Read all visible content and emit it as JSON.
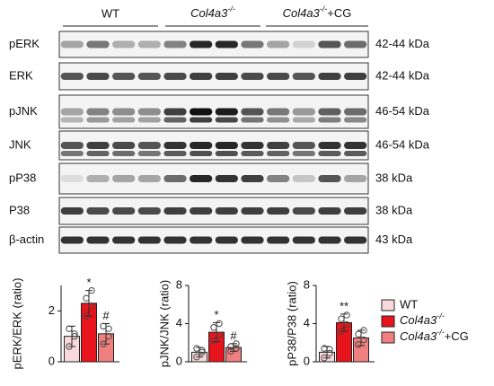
{
  "blot": {
    "groups": [
      "WT",
      "Col4a3-/-",
      "Col4a3-/-+CG"
    ],
    "rows": [
      {
        "label": "pERK",
        "size": "42-44 kDa"
      },
      {
        "label": "ERK",
        "size": "42-44 kDa"
      },
      {
        "label": "pJNK",
        "size": "46-54 kDa"
      },
      {
        "label": "JNK",
        "size": "46-54 kDa"
      },
      {
        "label": "pP38",
        "size": "38 kDa"
      },
      {
        "label": "P38",
        "size": "38 kDa"
      },
      {
        "label": "β-actin",
        "size": "43 kDa"
      }
    ]
  },
  "chart_data": [
    {
      "type": "bar",
      "ylabel": "pERK/ERK (ratio)",
      "ylim": [
        0,
        3
      ],
      "yticks": [
        0,
        2
      ],
      "series": [
        {
          "name": "WT",
          "color": "#f9d9dc",
          "values": [
            1.0
          ],
          "errors": [
            0.4
          ],
          "points": [
            0.6,
            1.0,
            1.3,
            1.1
          ]
        },
        {
          "name": "Col4a3-/-",
          "color": "#e8141c",
          "values": [
            2.3
          ],
          "errors": [
            0.5
          ],
          "points": [
            1.8,
            2.2,
            2.5,
            2.8
          ],
          "annotation": "*"
        },
        {
          "name": "Col4a3-/-+CG",
          "color": "#f08080",
          "values": [
            1.1
          ],
          "errors": [
            0.4
          ],
          "points": [
            0.7,
            1.0,
            1.4,
            1.3
          ],
          "annotation": "#"
        }
      ]
    },
    {
      "type": "bar",
      "ylabel": "pJNK/JNK (ratio)",
      "ylim": [
        0,
        8
      ],
      "yticks": [
        0,
        4,
        8
      ],
      "series": [
        {
          "name": "WT",
          "color": "#f9d9dc",
          "values": [
            1.0
          ],
          "errors": [
            0.5
          ],
          "points": [
            0.5,
            1.0,
            1.4,
            1.2
          ]
        },
        {
          "name": "Col4a3-/-",
          "color": "#e8141c",
          "values": [
            3.1
          ],
          "errors": [
            1.0
          ],
          "points": [
            2.2,
            2.8,
            3.6,
            4.0
          ],
          "annotation": "*"
        },
        {
          "name": "Col4a3-/-+CG",
          "color": "#f08080",
          "values": [
            1.5
          ],
          "errors": [
            0.4
          ],
          "points": [
            1.1,
            1.4,
            1.6,
            1.9
          ],
          "annotation": "#"
        }
      ]
    },
    {
      "type": "bar",
      "ylabel": "pP38/P38 (ratio)",
      "ylim": [
        0,
        8
      ],
      "yticks": [
        0,
        4,
        8
      ],
      "series": [
        {
          "name": "WT",
          "color": "#f9d9dc",
          "values": [
            1.0
          ],
          "errors": [
            0.6
          ],
          "points": [
            0.4,
            0.9,
            1.4,
            1.3
          ]
        },
        {
          "name": "Col4a3-/-",
          "color": "#e8141c",
          "values": [
            4.1
          ],
          "errors": [
            0.9
          ],
          "points": [
            3.2,
            3.9,
            4.5,
            4.9
          ],
          "annotation": "**"
        },
        {
          "name": "Col4a3-/-+CG",
          "color": "#f08080",
          "values": [
            2.5
          ],
          "errors": [
            0.8
          ],
          "points": [
            1.8,
            2.3,
            2.9,
            3.3
          ]
        }
      ]
    }
  ]
}
